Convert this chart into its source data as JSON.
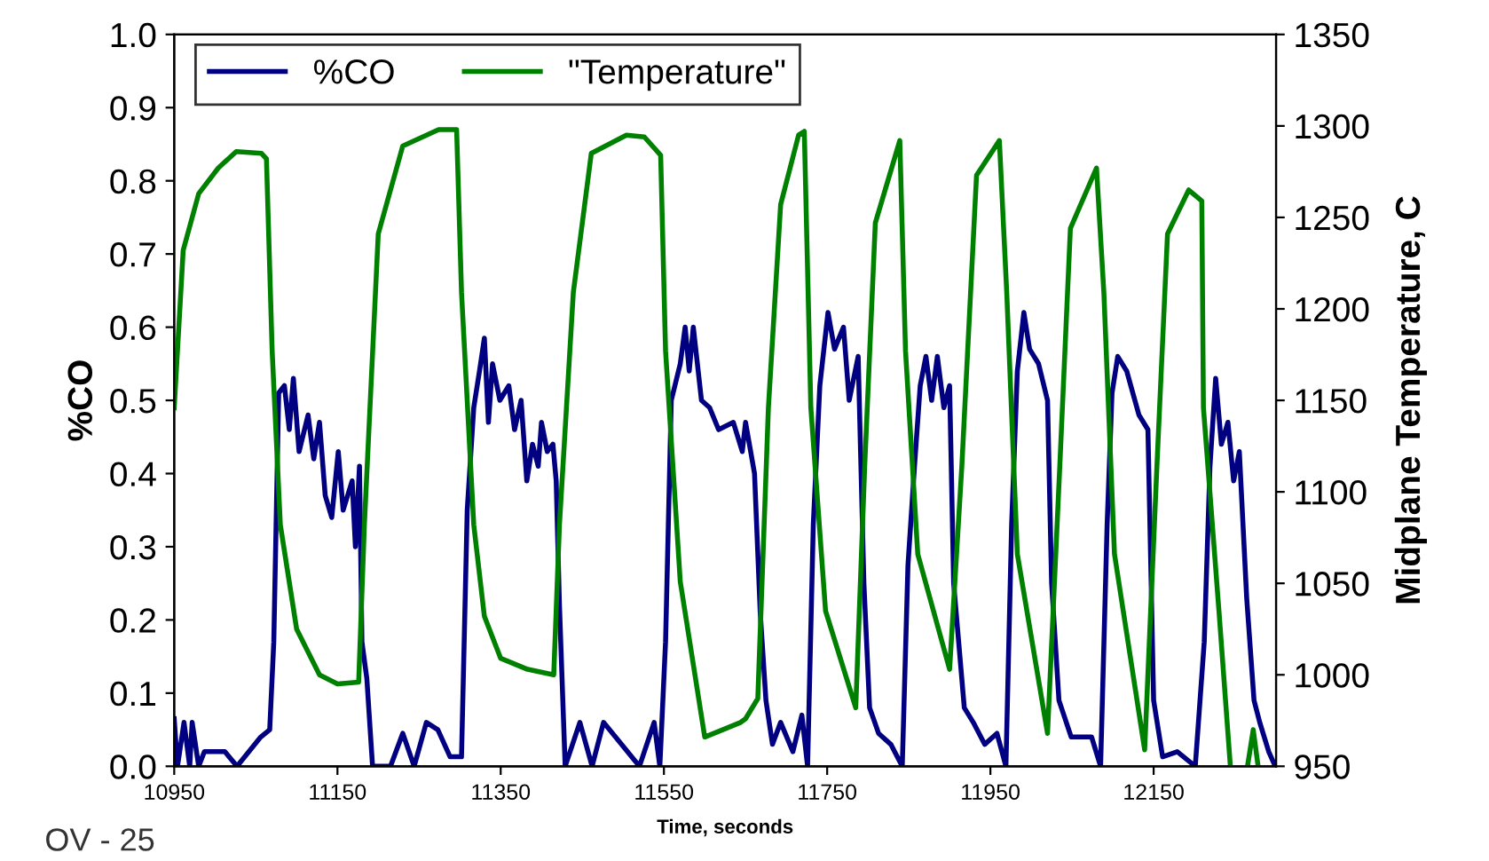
{
  "chart_data": {
    "type": "line",
    "xlabel": "Time, seconds",
    "ylabel": "%CO",
    "y2label": "Midplane Temperature, C",
    "xlim": [
      10950,
      12300
    ],
    "xticks": [
      10950,
      11150,
      11350,
      11550,
      11750,
      11950,
      12150
    ],
    "ylim": [
      0,
      1.0
    ],
    "yticks": [
      {
        "value": 0,
        "label": "0.0"
      },
      0.1,
      0.2,
      0.3,
      0.4,
      0.5,
      0.6,
      0.7,
      0.8,
      0.9,
      {
        "value": 1.0,
        "label": "1.0"
      }
    ],
    "y2lim": [
      950,
      1350
    ],
    "y2ticks": [
      950,
      1000,
      1050,
      1100,
      1150,
      1200,
      1250,
      1300,
      1350
    ],
    "grid": false,
    "legend": "top left",
    "marker": "none",
    "line_style": "solid",
    "annotations": [
      "OV - 25"
    ],
    "series": [
      {
        "name": "%CO",
        "color": "#000080",
        "x": [
          10950,
          10954,
          10962,
          10969,
          10972,
          10980,
          10987,
          11012,
          11027,
          11056,
          11067,
          11072,
          11078,
          11085,
          11091,
          11096,
          11103,
          11114,
          11121,
          11128,
          11135,
          11143,
          11151,
          11157,
          11168,
          11172,
          11177,
          11180,
          11186,
          11193,
          11215,
          11230,
          11244,
          11259,
          11273,
          11288,
          11302,
          11309,
          11317,
          11324,
          11330,
          11335,
          11340,
          11349,
          11360,
          11367,
          11375,
          11382,
          11389,
          11396,
          11400,
          11407,
          11414,
          11418,
          11422,
          11429,
          11447,
          11462,
          11476,
          11498,
          11520,
          11538,
          11545,
          11552,
          11559,
          11570,
          11576,
          11581,
          11586,
          11596,
          11606,
          11617,
          11635,
          11646,
          11650,
          11661,
          11668,
          11675,
          11683,
          11693,
          11708,
          11719,
          11726,
          11733,
          11741,
          11751,
          11759,
          11770,
          11777,
          11788,
          11795,
          11802,
          11813,
          11828,
          11842,
          11849,
          11857,
          11864,
          11871,
          11878,
          11885,
          11893,
          11900,
          11905,
          11918,
          11929,
          11943,
          11958,
          11969,
          11976,
          11983,
          11991,
          11998,
          12009,
          12020,
          12025,
          12034,
          12049,
          12074,
          12085,
          12093,
          12099,
          12106,
          12117,
          12132,
          12143,
          12150,
          12161,
          12179,
          12201,
          12212,
          12219,
          12226,
          12233,
          12241,
          12248,
          12255,
          12264,
          12273,
          12280,
          12291,
          12299
        ],
        "values": [
          0.065,
          0,
          0.06,
          0,
          0.06,
          0,
          0.02,
          0.02,
          0,
          0.04,
          0.05,
          0.17,
          0.51,
          0.52,
          0.46,
          0.53,
          0.43,
          0.48,
          0.42,
          0.47,
          0.37,
          0.34,
          0.43,
          0.35,
          0.39,
          0.3,
          0.41,
          0.17,
          0.12,
          0,
          0,
          0.045,
          0,
          0.06,
          0.05,
          0.013,
          0.013,
          0.35,
          0.49,
          0.54,
          0.585,
          0.47,
          0.55,
          0.5,
          0.52,
          0.46,
          0.5,
          0.39,
          0.44,
          0.41,
          0.47,
          0.43,
          0.44,
          0.39,
          0.22,
          0,
          0.06,
          0,
          0.06,
          0.03,
          0,
          0.06,
          0,
          0.17,
          0.5,
          0.55,
          0.6,
          0.54,
          0.6,
          0.5,
          0.49,
          0.46,
          0.47,
          0.43,
          0.47,
          0.4,
          0.21,
          0.09,
          0.03,
          0.06,
          0.02,
          0.07,
          0,
          0.33,
          0.52,
          0.62,
          0.57,
          0.6,
          0.5,
          0.56,
          0.25,
          0.08,
          0.045,
          0.03,
          0,
          0.275,
          0.41,
          0.52,
          0.56,
          0.5,
          0.56,
          0.49,
          0.52,
          0.25,
          0.08,
          0.06,
          0.03,
          0.045,
          0,
          0.33,
          0.54,
          0.62,
          0.57,
          0.55,
          0.5,
          0.25,
          0.09,
          0.04,
          0.04,
          0,
          0.33,
          0.51,
          0.56,
          0.54,
          0.48,
          0.46,
          0.09,
          0.013,
          0.02,
          0,
          0.17,
          0.41,
          0.53,
          0.44,
          0.47,
          0.39,
          0.43,
          0.23,
          0.09,
          0.06,
          0.02,
          0
        ]
      },
      {
        "name": "\"Temperature\"",
        "color": "#008000",
        "axis": "y2",
        "x": [
          10950,
          10961,
          10980,
          11004,
          11026,
          11057,
          11063,
          11070,
          11080,
          11100,
          11128,
          11150,
          11176,
          11183,
          11200,
          11230,
          11274,
          11296,
          11302,
          11317,
          11330,
          11350,
          11383,
          11415,
          11422,
          11439,
          11461,
          11504,
          11526,
          11546,
          11552,
          11570,
          11600,
          11644,
          11650,
          11665,
          11678,
          11693,
          11715,
          11722,
          11730,
          11748,
          11785,
          11796,
          11809,
          11839,
          11846,
          11861,
          11900,
          11915,
          11933,
          11961,
          11970,
          11983,
          12020,
          12035,
          12048,
          12080,
          12089,
          12102,
          12139,
          12154,
          12167,
          12193,
          12209,
          12211,
          12230,
          12244,
          12255,
          12265,
          12272,
          12278
        ],
        "values": [
          1146,
          1232,
          1263,
          1277,
          1286,
          1285,
          1282,
          1177,
          1082,
          1025,
          1000,
          995,
          996,
          1082,
          1241,
          1289,
          1298,
          1298,
          1209,
          1082,
          1032,
          1009,
          1003,
          1000,
          1082,
          1209,
          1285,
          1295,
          1294,
          1284,
          1177,
          1051,
          966,
          974,
          976,
          987,
          1146,
          1257,
          1295,
          1297,
          1146,
          1035,
          982,
          1114,
          1247,
          1292,
          1177,
          1066,
          1003,
          1114,
          1273,
          1292,
          1209,
          1066,
          968,
          1114,
          1244,
          1277,
          1209,
          1066,
          959,
          1114,
          1241,
          1265,
          1259,
          1146,
          1035,
          950,
          null,
          950,
          970,
          950
        ]
      }
    ]
  }
}
